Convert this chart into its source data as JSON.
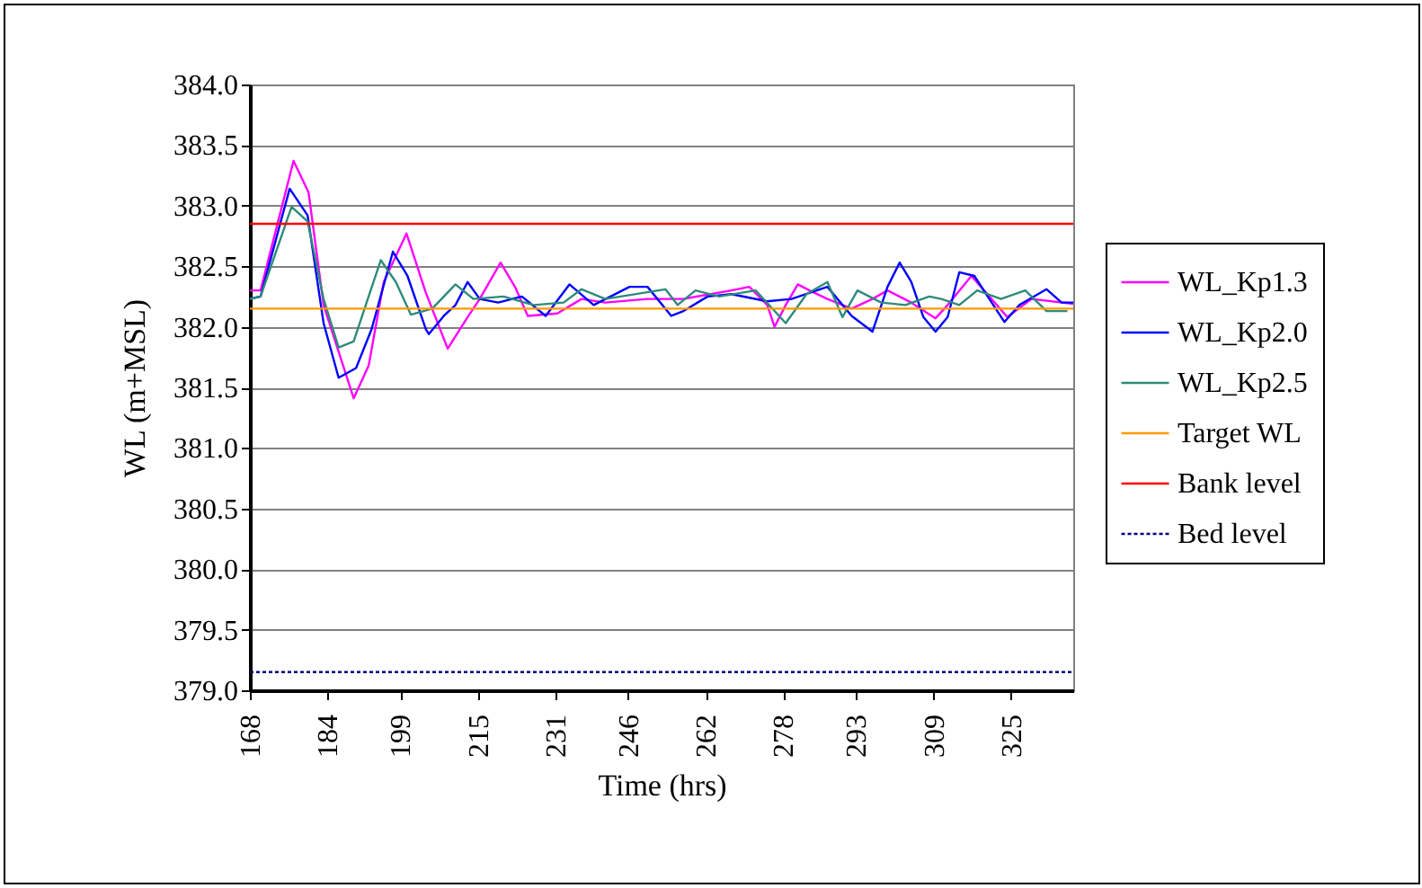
{
  "chart_data": {
    "type": "line",
    "xlabel": "Time (hrs)",
    "ylabel": "WL (m+MSL)",
    "xlim": [
      168,
      337.8
    ],
    "ylim": [
      379,
      384
    ],
    "xticks": [
      168,
      184,
      199,
      215,
      231,
      246,
      262,
      278,
      293,
      309,
      325
    ],
    "yticks": [
      {
        "value": 379,
        "label": "379.0"
      },
      {
        "value": 379.5,
        "label": "379.5"
      },
      {
        "value": 380,
        "label": "380.0"
      },
      {
        "value": 380.5,
        "label": "380.5"
      },
      {
        "value": 381,
        "label": "381.0"
      },
      {
        "value": 381.5,
        "label": "381.5"
      },
      {
        "value": 382,
        "label": "382.0"
      },
      {
        "value": 382.5,
        "label": "382.5"
      },
      {
        "value": 383,
        "label": "383.0"
      },
      {
        "value": 383.5,
        "label": "383.5"
      },
      {
        "value": 384,
        "label": "384.0"
      }
    ],
    "grid": "y",
    "legend": "right",
    "marker": "none",
    "line_style": "solid",
    "series": [
      {
        "name": "WL_Kp1.3",
        "color": "#ff00ff",
        "x": [
          168,
          170.2,
          177,
          180.1,
          183.2,
          189.4,
          192.5,
          195.6,
          200.3,
          204.3,
          208.8,
          212.9,
          215.4,
          219.7,
          222.8,
          225.3,
          231.4,
          236.4,
          241.3,
          250,
          257.4,
          267.3,
          271,
          274.7,
          276.2,
          278.5,
          281,
          283.4,
          287.1,
          292.1,
          296.4,
          299.5,
          304.4,
          309.4,
          311.9,
          316.8,
          320.5,
          324.2,
          329.2,
          337.8
        ],
        "values": [
          382.3,
          382.3,
          383.37,
          383.11,
          382.18,
          381.41,
          381.68,
          382.37,
          382.77,
          382.28,
          381.82,
          382.08,
          382.23,
          382.53,
          382.32,
          382.09,
          382.11,
          382.23,
          382.2,
          382.23,
          382.23,
          382.3,
          382.33,
          382.18,
          382.0,
          382.18,
          382.35,
          382.3,
          382.23,
          382.15,
          382.23,
          382.3,
          382.2,
          382.07,
          382.18,
          382.42,
          382.25,
          382.08,
          382.23,
          382.19
        ]
      },
      {
        "name": "WL_Kp2.0",
        "color": "#0000ff",
        "x": [
          168,
          170.2,
          176.2,
          179.9,
          183.2,
          186.3,
          189.9,
          193.1,
          197.5,
          200.5,
          204.3,
          204.9,
          208,
          210.4,
          212.9,
          215.4,
          219.2,
          224.1,
          229,
          233.9,
          238.9,
          246.3,
          250,
          254.9,
          257.4,
          262.4,
          267.3,
          274.7,
          279.7,
          287.1,
          292.1,
          296.4,
          299.5,
          302,
          304.4,
          306.9,
          309.4,
          311.9,
          314.3,
          317.4,
          320.5,
          323.6,
          326.7,
          332.3,
          335.4,
          337.8
        ],
        "values": [
          382.23,
          382.25,
          383.14,
          382.92,
          382.03,
          381.58,
          381.66,
          381.98,
          382.62,
          382.42,
          381.98,
          381.94,
          382.09,
          382.18,
          382.37,
          382.23,
          382.2,
          382.25,
          382.09,
          382.35,
          382.18,
          382.33,
          382.33,
          382.09,
          382.13,
          382.25,
          382.27,
          382.21,
          382.23,
          382.33,
          382.09,
          381.96,
          382.33,
          382.53,
          382.37,
          382.08,
          381.96,
          382.08,
          382.45,
          382.42,
          382.23,
          382.04,
          382.18,
          382.31,
          382.2,
          382.2
        ]
      },
      {
        "name": "WL_Kp2.5",
        "color": "#2e8b7a",
        "x": [
          168,
          170.2,
          176.6,
          179.9,
          183.2,
          186.3,
          189.4,
          191.9,
          195,
          198.1,
          201.2,
          205.6,
          210.4,
          214.1,
          220.3,
          226.5,
          232.7,
          236.4,
          241.3,
          253.7,
          256.2,
          259.9,
          264.8,
          272.3,
          278.5,
          282.8,
          287.1,
          290.2,
          293.3,
          298.2,
          303.2,
          308.1,
          310.6,
          314.3,
          318,
          322.9,
          327.9,
          332.3,
          336.6
        ],
        "values": [
          382.23,
          382.25,
          382.99,
          382.87,
          382.23,
          381.83,
          381.88,
          382.18,
          382.55,
          382.37,
          382.1,
          382.15,
          382.35,
          382.23,
          382.25,
          382.18,
          382.2,
          382.31,
          382.23,
          382.31,
          382.18,
          382.3,
          382.25,
          382.3,
          382.03,
          382.27,
          382.37,
          382.08,
          382.3,
          382.2,
          382.18,
          382.25,
          382.23,
          382.18,
          382.3,
          382.23,
          382.3,
          382.13,
          382.13
        ]
      }
    ],
    "ref_lines": [
      {
        "axis": "y",
        "value": 382.15,
        "label": "Target WL",
        "color": "#ff9900",
        "line_style": "solid"
      },
      {
        "axis": "y",
        "value": 382.85,
        "label": "Bank level",
        "color": "#ff0000",
        "line_style": "solid"
      },
      {
        "axis": "y",
        "value": 379.15,
        "label": "Bed level",
        "color": "#000080",
        "line_style": "dotted"
      }
    ]
  }
}
